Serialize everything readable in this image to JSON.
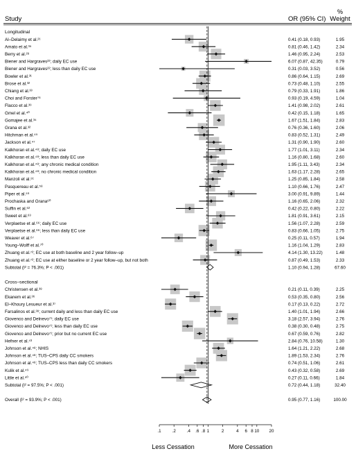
{
  "chart_data": {
    "type": "forest",
    "header": {
      "study": "Study",
      "or": "OR (95% CI)",
      "weight_pct": "%",
      "weight": "Weight"
    },
    "x_axis": {
      "scale": "log",
      "ticks": [
        0.1,
        0.2,
        0.4,
        0.6,
        0.8,
        1,
        2,
        4,
        6,
        8,
        10,
        20
      ],
      "tick_labels": [
        ".1",
        ".2",
        ".4",
        ".6",
        ".8",
        "1",
        "2",
        "4",
        "6",
        "8",
        "10",
        "20"
      ],
      "left_label": "Less Cessation",
      "right_label": "More Cessation",
      "reference_line": 1
    },
    "groups": [
      {
        "title": "Longitudinal",
        "studies": [
          {
            "label": "Al–Delaimy et al.²¹",
            "or": 0.41,
            "lo": 0.18,
            "hi": 0.93,
            "ci": "0.41 (0.18, 0.93)",
            "weight": "1.95"
          },
          {
            "label": "Amato et al.³⁵",
            "or": 0.81,
            "lo": 0.46,
            "hi": 1.42,
            "ci": "0.81 (0.46, 1.42)",
            "weight": "2.34"
          },
          {
            "label": "Berry et al.²⁸",
            "or": 1.46,
            "lo": 0.95,
            "hi": 2.24,
            "ci": "1.46 (0.95, 2.24)",
            "weight": "2.53"
          },
          {
            "label": "Biener and Hargraves²²; daily EC use",
            "or": 6.07,
            "lo": 0.87,
            "hi": 42.35,
            "ci": "6.07 (0.87, 42.35)",
            "weight": "0.79"
          },
          {
            "label": "Biener and Hargraves²²; less than daily EC use",
            "or": 0.31,
            "lo": 0.03,
            "hi": 3.52,
            "ci": "0.31 (0.03, 3.52)",
            "weight": "0.56"
          },
          {
            "label": "Bowler et al.³¹",
            "or": 0.86,
            "lo": 0.64,
            "hi": 1.15,
            "ci": "0.86 (0.64, 1.15)",
            "weight": "2.69"
          },
          {
            "label": "Brose et al.³²",
            "or": 0.73,
            "lo": 0.48,
            "hi": 1.1,
            "ci": "0.73 (0.48, 1.10)",
            "weight": "2.55"
          },
          {
            "label": "Chiang et al.³³",
            "or": 0.79,
            "lo": 0.33,
            "hi": 1.91,
            "ci": "0.79 (0.33, 1.91)",
            "weight": "1.86"
          },
          {
            "label": "Choi and Forster⁷⁶",
            "or": 0.93,
            "lo": 0.19,
            "hi": 4.59,
            "ci": "0.93 (0.19, 4.59)",
            "weight": "1.04"
          },
          {
            "label": "Flacco et al.³⁹",
            "or": 1.41,
            "lo": 0.98,
            "hi": 2.02,
            "ci": "1.41 (0.98, 2.02)",
            "weight": "2.61"
          },
          {
            "label": "Gmel et al.⁴⁰",
            "or": 0.42,
            "lo": 0.15,
            "hi": 1.18,
            "ci": "0.42 (0.15, 1.18)",
            "weight": "1.65"
          },
          {
            "label": "Gomajee et al.³⁴",
            "or": 1.67,
            "lo": 1.51,
            "hi": 1.84,
            "ci": "1.67 (1.51, 1.84)",
            "weight": "2.83"
          },
          {
            "label": "Grana et al.³²",
            "or": 0.76,
            "lo": 0.36,
            "hi": 1.6,
            "ci": "0.76 (0.36, 1.60)",
            "weight": "2.06"
          },
          {
            "label": "Hitchman et al.⁴⁵",
            "or": 0.83,
            "lo": 0.52,
            "hi": 1.31,
            "ci": "0.83 (0.52, 1.31)",
            "weight": "2.49"
          },
          {
            "label": "Jackson et al.⁴⁷",
            "or": 1.31,
            "lo": 0.9,
            "hi": 1.9,
            "ci": "1.31 (0.90, 1.90)",
            "weight": "2.60"
          },
          {
            "label": "Kalkhoran et al.⁴⁸; daily EC use",
            "or": 1.77,
            "lo": 1.01,
            "hi": 3.11,
            "ci": "1.77 (1.01, 3.11)",
            "weight": "2.34"
          },
          {
            "label": "Kalkhoran et al.⁴⁸; less than daily EC use",
            "or": 1.16,
            "lo": 0.8,
            "hi": 1.68,
            "ci": "1.16 (0.80, 1.68)",
            "weight": "2.60"
          },
          {
            "label": "Kalkhoran et al.⁴⁸; any chronic medical condition",
            "or": 1.95,
            "lo": 1.11,
            "hi": 3.43,
            "ci": "1.95 (1.11, 3.43)",
            "weight": "2.34"
          },
          {
            "label": "Kalkhoran et al.⁴⁸; no chronic medical condition",
            "or": 1.63,
            "lo": 1.17,
            "hi": 2.28,
            "ci": "1.63 (1.17, 2.28)",
            "weight": "2.65"
          },
          {
            "label": "Manzoli et al.⁵¹",
            "or": 1.25,
            "lo": 0.85,
            "hi": 1.84,
            "ci": "1.25 (0.85, 1.84)",
            "weight": "2.58"
          },
          {
            "label": "Pasquereau et al.⁵⁸",
            "or": 1.1,
            "lo": 0.66,
            "hi": 1.76,
            "ci": "1.10 (0.66, 1.76)",
            "weight": "2.47"
          },
          {
            "label": "Piper et al.⁵⁹",
            "or": 3.0,
            "lo": 0.91,
            "hi": 9.89,
            "ci": "3.00 (0.91, 9.89)",
            "weight": "1.44"
          },
          {
            "label": "Prochaska and Grana⁶⁰",
            "or": 1.16,
            "lo": 0.65,
            "hi": 2.06,
            "ci": "1.16 (0.65, 2.06)",
            "weight": "2.32"
          },
          {
            "label": "Suffin et al.⁶²",
            "or": 0.42,
            "lo": 0.22,
            "hi": 0.8,
            "ci": "0.42 (0.22, 0.80)",
            "weight": "2.22"
          },
          {
            "label": "Sweet et al.⁶³",
            "or": 1.81,
            "lo": 0.91,
            "hi": 3.61,
            "ci": "1.81 (0.91, 3.61)",
            "weight": "2.15"
          },
          {
            "label": "Verplaetse et al.⁶⁶; daily EC use",
            "or": 1.56,
            "lo": 1.07,
            "hi": 2.28,
            "ci": "1.56 (1.07, 2.28)",
            "weight": "2.59"
          },
          {
            "label": "Verplaetse et al.⁶⁶; less than daily EC use",
            "or": 0.83,
            "lo": 0.66,
            "hi": 1.05,
            "ci": "0.83 (0.66, 1.05)",
            "weight": "2.75"
          },
          {
            "label": "Weaver et al.⁶⁷",
            "or": 0.25,
            "lo": 0.11,
            "hi": 0.57,
            "ci": "0.25 (0.11, 0.57)",
            "weight": "1.94"
          },
          {
            "label": "Young–Wolff et al.⁷⁰",
            "or": 1.16,
            "lo": 1.04,
            "hi": 1.29,
            "ci": "1.16 (1.04, 1.29)",
            "weight": "2.83"
          },
          {
            "label": "Zhuang et al.⁷²; EC use at both baseline and 2 year follow–up",
            "or": 4.14,
            "lo": 1.3,
            "hi": 13.22,
            "ci": "4.14 (1.30, 13.22)",
            "weight": "1.48"
          },
          {
            "label": "Zhuang et al.⁷²; EC use at either baseline or 2 year follow–up, but not both",
            "or": 0.87,
            "lo": 0.49,
            "hi": 1.53,
            "ci": "0.87 (0.49, 1.53)",
            "weight": "2.33"
          }
        ],
        "subtotal": {
          "label": "Subtotal  (I² = 76.3%; P < .001)",
          "or": 1.1,
          "lo": 0.94,
          "hi": 1.28,
          "ci": "1.10 (0.94, 1.28)",
          "weight": "67.60"
        }
      },
      {
        "title": "Cross–sectional",
        "studies": [
          {
            "label": "Christensen et al.³⁸",
            "or": 0.21,
            "lo": 0.11,
            "hi": 0.39,
            "ci": "0.21 (0.11, 0.39)",
            "weight": "2.25"
          },
          {
            "label": "Ekanem et al.³⁶",
            "or": 0.53,
            "lo": 0.35,
            "hi": 0.8,
            "ci": "0.53 (0.35, 0.80)",
            "weight": "2.56"
          },
          {
            "label": "El–Khoury Lesueur et al.³⁷",
            "or": 0.17,
            "lo": 0.13,
            "hi": 0.22,
            "ci": "0.17 (0.13, 0.22)",
            "weight": "2.72"
          },
          {
            "label": "Farsalinos et al.³⁸; current daily and less than daily EC use",
            "or": 1.4,
            "lo": 1.01,
            "hi": 1.94,
            "ci": "1.40 (1.01, 1.94)",
            "weight": "2.66"
          },
          {
            "label": "Giovenco and Delnevo⁷¹; daily EC use",
            "or": 3.18,
            "lo": 2.57,
            "hi": 3.94,
            "ci": "3.18 (2.57, 3.94)",
            "weight": "2.76"
          },
          {
            "label": "Giovenco and Delnevo⁷¹; less than daily EC use",
            "or": 0.38,
            "lo": 0.3,
            "hi": 0.48,
            "ci": "0.38 (0.30, 0.48)",
            "weight": "2.75"
          },
          {
            "label": "Giovenco and Delnevo⁷¹; prior but no current EC use",
            "or": 0.67,
            "lo": 0.59,
            "hi": 0.76,
            "ci": "0.67 (0.59, 0.76)",
            "weight": "2.82"
          },
          {
            "label": "Hefner et al.⁴³",
            "or": 2.84,
            "or_note": "",
            "lo": 0.76,
            "hi": 10.58,
            "ci": "2.84 (0.76, 10.58)",
            "weight": "1.30"
          },
          {
            "label": "Johnson et al.⁴⁸; NHIS",
            "or": 1.64,
            "lo": 1.21,
            "hi": 2.22,
            "ci": "1.64 (1.21, 2.22)",
            "weight": "2.68"
          },
          {
            "label": "Johnson et al.⁴⁸; TUS–CPS daily CC smokers",
            "or": 1.89,
            "lo": 1.53,
            "hi": 2.34,
            "ci": "1.89 (1.53, 2.34)",
            "weight": "2.76"
          },
          {
            "label": "Johnson et al.⁴⁸; TUS–CPS less than daily CC smokers",
            "or": 0.74,
            "lo": 0.51,
            "hi": 1.06,
            "ci": "0.74 (0.51, 1.06)",
            "weight": "2.61"
          },
          {
            "label": "Kulik et al.⁴⁹",
            "or": 0.43,
            "lo": 0.32,
            "hi": 0.58,
            "ci": "0.43 (0.32, 0.58)",
            "weight": "2.69"
          },
          {
            "label": "Little et al.⁵⁰",
            "or": 0.27,
            "lo": 0.11,
            "hi": 0.66,
            "ci": "0.27 (0.11, 0.66)",
            "weight": "1.84"
          }
        ],
        "subtotal": {
          "label": "Subtotal  (I² = 97.5%; P < .001)",
          "or": 0.72,
          "lo": 0.44,
          "hi": 1.18,
          "ci": "0.72 (0.44, 1.18)",
          "weight": "32.40"
        }
      }
    ],
    "overall": {
      "label": "Overall  (I² = 93.9%; P < .001)",
      "or": 0.95,
      "lo": 0.77,
      "hi": 1.16,
      "ci": "0.95 (0.77, 1.16)",
      "weight": "100.00"
    }
  }
}
